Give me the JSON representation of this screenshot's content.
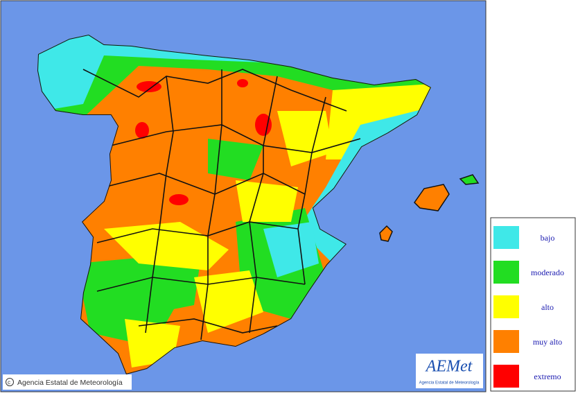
{
  "map": {
    "credit": "Agencia Estatal de Meteorología",
    "logo": {
      "name": "AEMet",
      "subtitle": "Agencia Estatal de Meteorología"
    },
    "legend": [
      {
        "label": "bajo",
        "color": "#3fe8e8"
      },
      {
        "label": "moderado",
        "color": "#22dd22"
      },
      {
        "label": "alto",
        "color": "#ffff00"
      },
      {
        "label": "muy alto",
        "color": "#ff8000"
      },
      {
        "label": "extremo",
        "color": "#ff0000"
      }
    ]
  }
}
